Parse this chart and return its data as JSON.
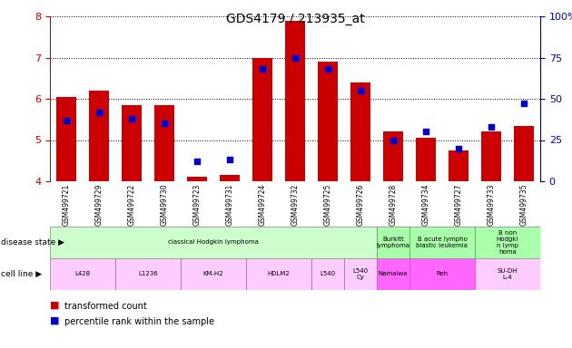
{
  "title": "GDS4179 / 213935_at",
  "samples": [
    "GSM499721",
    "GSM499729",
    "GSM499722",
    "GSM499730",
    "GSM499723",
    "GSM499731",
    "GSM499724",
    "GSM499732",
    "GSM499725",
    "GSM499726",
    "GSM499728",
    "GSM499734",
    "GSM499727",
    "GSM499733",
    "GSM499735"
  ],
  "transformed_count": [
    6.05,
    6.2,
    5.85,
    5.85,
    4.1,
    4.15,
    7.0,
    7.9,
    6.9,
    6.4,
    5.2,
    5.05,
    4.75,
    5.2,
    5.35
  ],
  "percentile_rank": [
    37,
    42,
    38,
    35,
    12,
    13,
    68,
    75,
    68,
    55,
    25,
    30,
    20,
    33,
    47
  ],
  "ylim": [
    4,
    8
  ],
  "yticks": [
    4,
    5,
    6,
    7,
    8
  ],
  "right_yticks_vals": [
    0,
    25,
    50,
    75,
    100
  ],
  "right_ytick_labels": [
    "0",
    "25",
    "50",
    "75",
    "100%"
  ],
  "bar_color": "#cc0000",
  "dot_color": "#0000cc",
  "disease_state_groups": [
    {
      "label": "classical Hodgkin lymphoma",
      "start": 0,
      "end": 9,
      "color": "#ccffcc"
    },
    {
      "label": "Burkitt\nlymphoma",
      "start": 10,
      "end": 10,
      "color": "#aaffaa"
    },
    {
      "label": "B acute lympho\nblastic leukemia",
      "start": 11,
      "end": 12,
      "color": "#aaffaa"
    },
    {
      "label": "B non\nHodgki\nn lymp\nhoma",
      "start": 13,
      "end": 14,
      "color": "#aaffaa"
    }
  ],
  "cell_line_groups": [
    {
      "label": "L428",
      "start": 0,
      "end": 1,
      "color": "#ffccff"
    },
    {
      "label": "L1236",
      "start": 2,
      "end": 3,
      "color": "#ffccff"
    },
    {
      "label": "KM-H2",
      "start": 4,
      "end": 5,
      "color": "#ffccff"
    },
    {
      "label": "HDLM2",
      "start": 6,
      "end": 7,
      "color": "#ffccff"
    },
    {
      "label": "L540",
      "start": 8,
      "end": 8,
      "color": "#ffccff"
    },
    {
      "label": "L540\nCy",
      "start": 9,
      "end": 9,
      "color": "#ffccff"
    },
    {
      "label": "Namalwa",
      "start": 10,
      "end": 10,
      "color": "#ff66ff"
    },
    {
      "label": "Reh",
      "start": 11,
      "end": 12,
      "color": "#ff66ff"
    },
    {
      "label": "SU-DH\nL-4",
      "start": 13,
      "end": 14,
      "color": "#ffccff"
    }
  ],
  "xtick_bg_color": "#cccccc",
  "bar_color_red": "#cc0000",
  "dot_color_blue": "#0000cc",
  "left_tick_color": "#cc0000",
  "right_tick_color": "#0000cc",
  "grid_linestyle": ":",
  "grid_color": "black",
  "legend_square_red": "#cc0000",
  "legend_square_blue": "#0000cc"
}
